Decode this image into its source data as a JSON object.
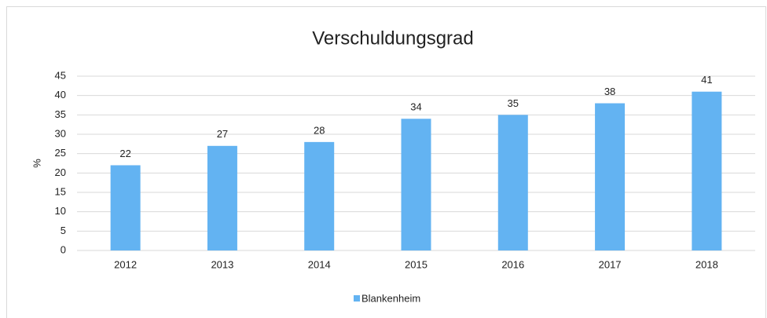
{
  "chart_data": {
    "type": "bar",
    "title": "Verschuldungsgrad",
    "y_label": "%",
    "categories": [
      "2012",
      "2013",
      "2014",
      "2015",
      "2016",
      "2017",
      "2018"
    ],
    "series": [
      {
        "name": "Blankenheim",
        "color": "#63b3f2",
        "values": [
          22,
          27,
          28,
          34,
          35,
          38,
          41
        ]
      }
    ],
    "ylim": [
      0,
      45
    ],
    "yticks": [
      0,
      5,
      10,
      15,
      20,
      25,
      30,
      35,
      40,
      45
    ],
    "grid": true,
    "legend": "bottom"
  }
}
